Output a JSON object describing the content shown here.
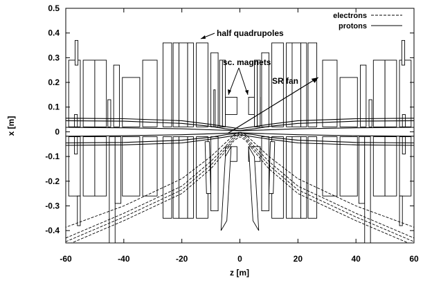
{
  "chart_data": {
    "type": "line",
    "xlabel": "z [m]",
    "ylabel": "x [m]",
    "xlim": [
      -60,
      60
    ],
    "ylim": [
      -0.45,
      0.5
    ],
    "xticks": [
      "-60",
      "-40",
      "-20",
      "0",
      "20",
      "40",
      "60"
    ],
    "yticks": [
      "0.5",
      "0.4",
      "0.3",
      "0.2",
      "0.1",
      "0",
      "-0.1",
      "-0.2",
      "-0.3",
      "-0.4"
    ],
    "legend": {
      "position": "top-right",
      "entries": [
        {
          "label": "electrons",
          "style": "dashed"
        },
        {
          "label": "protons",
          "style": "solid"
        }
      ]
    },
    "annotations": [
      {
        "text": "half quadrupoles"
      },
      {
        "text": "sc. magnets"
      },
      {
        "text": "SR fan"
      }
    ],
    "series": [
      {
        "name": "protons",
        "style": "solid",
        "curves": [
          [
            [
              -60,
              0.045
            ],
            [
              -40,
              0.043
            ],
            [
              -20,
              0.034
            ],
            [
              -10,
              0.022
            ],
            [
              -5,
              0.012
            ],
            [
              0,
              0.005
            ],
            [
              5,
              0.012
            ],
            [
              10,
              0.022
            ],
            [
              20,
              0.034
            ],
            [
              40,
              0.043
            ],
            [
              60,
              0.045
            ]
          ],
          [
            [
              -60,
              -0.045
            ],
            [
              -40,
              -0.043
            ],
            [
              -20,
              -0.034
            ],
            [
              -10,
              -0.022
            ],
            [
              -5,
              -0.012
            ],
            [
              0,
              -0.005
            ],
            [
              5,
              -0.012
            ],
            [
              10,
              -0.022
            ],
            [
              20,
              -0.034
            ],
            [
              40,
              -0.043
            ],
            [
              60,
              -0.045
            ]
          ],
          [
            [
              -60,
              0.018
            ],
            [
              -40,
              0.016
            ],
            [
              -20,
              0.012
            ],
            [
              0,
              0.004
            ],
            [
              20,
              0.012
            ],
            [
              40,
              0.016
            ],
            [
              60,
              0.018
            ]
          ],
          [
            [
              -60,
              -0.018
            ],
            [
              -40,
              -0.016
            ],
            [
              -20,
              -0.012
            ],
            [
              0,
              -0.004
            ],
            [
              20,
              -0.012
            ],
            [
              40,
              -0.016
            ],
            [
              60,
              -0.018
            ]
          ],
          [
            [
              -60,
              0.055
            ],
            [
              -40,
              0.053
            ],
            [
              -20,
              0.045
            ],
            [
              -10,
              0.03
            ],
            [
              0,
              0.012
            ],
            [
              10,
              0.03
            ],
            [
              20,
              0.045
            ],
            [
              40,
              0.053
            ],
            [
              60,
              0.055
            ]
          ],
          [
            [
              -60,
              -0.055
            ],
            [
              -40,
              -0.053
            ],
            [
              -20,
              -0.045
            ],
            [
              -10,
              -0.03
            ],
            [
              0,
              -0.012
            ],
            [
              10,
              -0.03
            ],
            [
              20,
              -0.045
            ],
            [
              40,
              -0.053
            ],
            [
              60,
              -0.055
            ]
          ]
        ]
      },
      {
        "name": "electrons",
        "style": "dashed",
        "curves": [
          [
            [
              -60,
              -0.46
            ],
            [
              -40,
              -0.36
            ],
            [
              -20,
              -0.25
            ],
            [
              -10,
              -0.15
            ],
            [
              -5,
              -0.08
            ],
            [
              -2,
              -0.035
            ],
            [
              0,
              -0.02
            ],
            [
              2,
              -0.035
            ],
            [
              5,
              -0.08
            ],
            [
              10,
              -0.15
            ],
            [
              20,
              -0.25
            ],
            [
              40,
              -0.36
            ],
            [
              60,
              -0.46
            ]
          ],
          [
            [
              -60,
              -0.43
            ],
            [
              -40,
              -0.33
            ],
            [
              -20,
              -0.22
            ],
            [
              -10,
              -0.12
            ],
            [
              -5,
              -0.06
            ],
            [
              -2,
              -0.02
            ],
            [
              0,
              -0.005
            ],
            [
              2,
              -0.02
            ],
            [
              5,
              -0.06
            ],
            [
              10,
              -0.12
            ],
            [
              20,
              -0.22
            ],
            [
              40,
              -0.33
            ],
            [
              60,
              -0.43
            ]
          ],
          [
            [
              -60,
              -0.445
            ],
            [
              -40,
              -0.345
            ],
            [
              -20,
              -0.235
            ],
            [
              -10,
              -0.135
            ],
            [
              -5,
              -0.07
            ],
            [
              -2,
              -0.028
            ],
            [
              0,
              -0.012
            ],
            [
              2,
              -0.028
            ],
            [
              5,
              -0.07
            ],
            [
              10,
              -0.135
            ],
            [
              20,
              -0.235
            ],
            [
              40,
              -0.345
            ],
            [
              60,
              -0.445
            ]
          ],
          [
            [
              -62,
              -0.395
            ],
            [
              -40,
              -0.3
            ],
            [
              -20,
              -0.19
            ],
            [
              -10,
              -0.1
            ],
            [
              -5,
              -0.045
            ],
            [
              -2,
              -0.012
            ],
            [
              0,
              0.0
            ],
            [
              2,
              -0.012
            ],
            [
              5,
              -0.045
            ],
            [
              10,
              -0.1
            ],
            [
              20,
              -0.19
            ],
            [
              40,
              -0.3
            ],
            [
              62,
              -0.395
            ]
          ]
        ]
      }
    ],
    "sr_fan": [
      [
        -4,
        -0.005
      ],
      [
        27,
        0.22
      ]
    ],
    "magnets": [
      [
        -59,
        -55,
        0.02,
        0.29
      ],
      [
        -56.8,
        -55.8,
        0.27,
        0.37
      ],
      [
        -57,
        -56,
        0.02,
        0.07
      ],
      [
        -54,
        -50,
        0.02,
        0.29
      ],
      [
        -50,
        -46,
        0.02,
        0.29
      ],
      [
        -45.5,
        -44.5,
        0.02,
        0.13
      ],
      [
        -43.5,
        -41.5,
        0.02,
        0.27
      ],
      [
        -40.5,
        -34.5,
        0.02,
        0.22
      ],
      [
        -33.5,
        -28.5,
        0.02,
        0.29
      ],
      [
        -26.5,
        -23.5,
        0.02,
        0.36
      ],
      [
        -23,
        -21,
        0.02,
        0.36
      ],
      [
        -21,
        -18,
        0.02,
        0.36
      ],
      [
        -18,
        -16,
        0.02,
        0.36
      ],
      [
        -15,
        -11,
        0.02,
        0.36
      ],
      [
        -10,
        -7.5,
        0.02,
        0.32
      ],
      [
        -7,
        -6,
        0.02,
        0.29
      ],
      [
        -6,
        -5,
        0.02,
        0.29
      ],
      [
        -9,
        -8.5,
        0.02,
        0.17
      ],
      [
        -5,
        -1,
        0.07,
        0.14
      ],
      [
        3,
        7,
        0.07,
        0.14
      ],
      [
        8.5,
        9,
        0.02,
        0.17
      ],
      [
        5,
        6,
        0.02,
        0.29
      ],
      [
        6,
        7,
        0.02,
        0.29
      ],
      [
        7.5,
        10,
        0.02,
        0.32
      ],
      [
        11,
        15,
        0.02,
        0.36
      ],
      [
        16,
        18,
        0.02,
        0.36
      ],
      [
        18,
        21,
        0.02,
        0.36
      ],
      [
        21,
        23,
        0.02,
        0.36
      ],
      [
        23.5,
        26.5,
        0.02,
        0.36
      ],
      [
        28.5,
        33.5,
        0.02,
        0.29
      ],
      [
        34.5,
        40.5,
        0.02,
        0.22
      ],
      [
        41.5,
        43.5,
        0.02,
        0.27
      ],
      [
        44.5,
        45.5,
        0.02,
        0.13
      ],
      [
        46,
        50,
        0.02,
        0.29
      ],
      [
        50,
        54,
        0.02,
        0.29
      ],
      [
        55,
        59,
        0.02,
        0.29
      ],
      [
        55.8,
        56.8,
        0.27,
        0.37
      ],
      [
        56,
        57,
        0.02,
        0.07
      ],
      [
        -59,
        -55,
        -0.26,
        -0.02
      ],
      [
        -57,
        -56,
        -0.09,
        -0.02
      ],
      [
        -56,
        -55,
        -0.38,
        -0.26
      ],
      [
        -54,
        -50,
        -0.26,
        -0.02
      ],
      [
        -50,
        -46,
        -0.26,
        -0.02
      ],
      [
        -45,
        -43,
        -0.45,
        -0.02
      ],
      [
        -43,
        -41,
        -0.29,
        -0.02
      ],
      [
        -40.5,
        -34.5,
        -0.26,
        -0.02
      ],
      [
        -33.5,
        -28.5,
        -0.26,
        -0.02
      ],
      [
        -26.5,
        -23.5,
        -0.35,
        -0.02
      ],
      [
        -23,
        -21,
        -0.35,
        -0.02
      ],
      [
        -21,
        -18,
        -0.35,
        -0.02
      ],
      [
        -18,
        -16,
        -0.35,
        -0.02
      ],
      [
        -15,
        -11,
        -0.35,
        -0.02
      ],
      [
        -10,
        -7.5,
        -0.32,
        -0.02
      ],
      [
        -5,
        -1,
        -0.12,
        -0.06
      ],
      [
        3,
        7,
        -0.12,
        -0.06
      ],
      [
        7.5,
        10,
        -0.32,
        -0.02
      ],
      [
        11,
        15,
        -0.35,
        -0.02
      ],
      [
        16,
        18,
        -0.35,
        -0.02
      ],
      [
        18,
        21,
        -0.35,
        -0.02
      ],
      [
        21,
        23,
        -0.35,
        -0.02
      ],
      [
        23.5,
        26.5,
        -0.35,
        -0.02
      ],
      [
        28.5,
        33.5,
        -0.26,
        -0.02
      ],
      [
        34.5,
        40.5,
        -0.26,
        -0.02
      ],
      [
        41,
        43,
        -0.29,
        -0.02
      ],
      [
        43,
        45,
        -0.45,
        -0.02
      ],
      [
        46,
        50,
        -0.26,
        -0.02
      ],
      [
        50,
        54,
        -0.26,
        -0.02
      ],
      [
        55,
        59,
        -0.26,
        -0.02
      ],
      [
        56,
        57,
        -0.09,
        -0.02
      ],
      [
        55,
        56,
        -0.38,
        -0.26
      ]
    ],
    "tilted_magnets": [
      [
        [
          -5,
          -0.1
        ],
        [
          -3,
          -0.06
        ],
        [
          -4.5,
          -0.36
        ],
        [
          -6.5,
          -0.4
        ]
      ],
      [
        [
          3,
          -0.06
        ],
        [
          5,
          -0.1
        ],
        [
          6.5,
          -0.4
        ],
        [
          4.5,
          -0.36
        ]
      ],
      [
        [
          -12,
          -0.04
        ],
        [
          -10.5,
          -0.04
        ],
        [
          -10,
          -0.25
        ],
        [
          -11.5,
          -0.25
        ]
      ],
      [
        [
          10.5,
          -0.04
        ],
        [
          12,
          -0.04
        ],
        [
          11.5,
          -0.25
        ],
        [
          10,
          -0.25
        ]
      ]
    ]
  }
}
